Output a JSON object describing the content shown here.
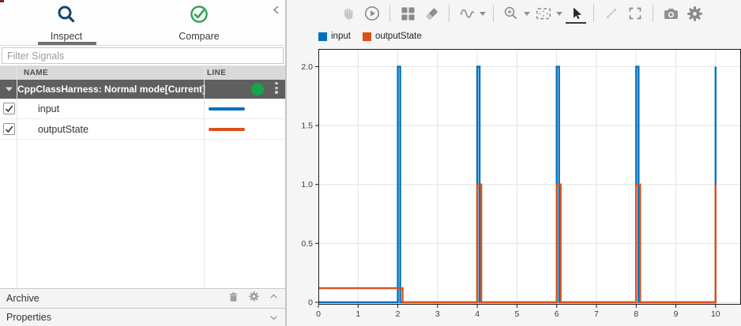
{
  "left_panel": {
    "collapse_icon": "chevron-left",
    "tabs": [
      {
        "label": "Inspect",
        "icon": "magnifier",
        "selected": true
      },
      {
        "label": "Compare",
        "icon": "check-circle",
        "selected": false
      }
    ],
    "filter_placeholder": "Filter Signals",
    "table_columns": {
      "name": "NAME",
      "line": "LINE"
    },
    "run": {
      "title": "CppClassHarness: Normal mode[Current]",
      "status": "active",
      "status_color": "#17A54B",
      "expanded": true
    },
    "signals": [
      {
        "name": "input",
        "checked": true,
        "line_color": "#0072BD"
      },
      {
        "name": "outputState",
        "checked": true,
        "line_color": "#D95319"
      }
    ],
    "archive_label": "Archive",
    "properties_label": "Properties"
  },
  "toolbar": {
    "icons": [
      {
        "name": "pan-hand",
        "enabled": false
      },
      {
        "name": "replay",
        "enabled": true
      },
      {
        "name": "subplot-layout",
        "enabled": true
      },
      {
        "name": "eraser",
        "enabled": true
      },
      {
        "name": "signal-wave",
        "enabled": true,
        "has_dropdown": true
      },
      {
        "name": "zoom-in",
        "enabled": true,
        "has_dropdown": true
      },
      {
        "name": "fit-to-view",
        "enabled": true,
        "has_dropdown": true
      },
      {
        "name": "pointer",
        "enabled": true,
        "selected": true
      },
      {
        "name": "resize-diagonal",
        "enabled": false
      },
      {
        "name": "maximize",
        "enabled": true
      },
      {
        "name": "snapshot-camera",
        "enabled": true
      },
      {
        "name": "settings-gear",
        "enabled": true
      }
    ]
  },
  "legend": {
    "items": [
      {
        "label": "input",
        "color": "#0072BD"
      },
      {
        "label": "outputState",
        "color": "#D95319"
      }
    ]
  },
  "chart_data": {
    "type": "line",
    "subtype": "step",
    "title": "",
    "xlabel": "",
    "ylabel": "",
    "xlim": [
      0,
      10.64
    ],
    "ylim": [
      -0.02,
      2.15
    ],
    "xticks": [
      0,
      1,
      2,
      3,
      4,
      5,
      6,
      7,
      8,
      9,
      10
    ],
    "yticks": [
      0,
      0.5,
      1,
      1.5,
      2
    ],
    "ytick_labels": [
      "0",
      "0.5",
      "1.0",
      "1.5",
      "2.0"
    ],
    "grid": true,
    "legend_position": "top-left",
    "series": [
      {
        "name": "input",
        "color": "#0072BD",
        "description": "zero baseline with narrow impulses to 2.0 at t = 2, 4, 6, 8, 10",
        "points": [
          [
            0,
            0
          ],
          [
            2,
            0
          ],
          [
            2,
            2
          ],
          [
            2.06,
            2
          ],
          [
            2.06,
            0
          ],
          [
            4,
            0
          ],
          [
            4,
            2
          ],
          [
            4.06,
            2
          ],
          [
            4.06,
            0
          ],
          [
            6,
            0
          ],
          [
            6,
            2
          ],
          [
            6.06,
            2
          ],
          [
            6.06,
            0
          ],
          [
            8,
            0
          ],
          [
            8,
            2
          ],
          [
            8.06,
            2
          ],
          [
            8.06,
            0
          ],
          [
            10,
            0
          ],
          [
            10,
            2
          ]
        ]
      },
      {
        "name": "outputState",
        "color": "#D95319",
        "description": "level 0.12 from t=0 to t=2.1, then 0 with pulses to 1.0 at t = 4-4.1, 6-6.1, 8-8.1, rising to 1.0 at t=10",
        "points": [
          [
            0,
            0.12
          ],
          [
            2.12,
            0.12
          ],
          [
            2.12,
            0
          ],
          [
            4,
            0
          ],
          [
            4,
            1
          ],
          [
            4.1,
            1
          ],
          [
            4.1,
            0
          ],
          [
            6,
            0
          ],
          [
            6,
            1
          ],
          [
            6.1,
            1
          ],
          [
            6.1,
            0
          ],
          [
            8,
            0
          ],
          [
            8,
            1
          ],
          [
            8.1,
            1
          ],
          [
            8.1,
            0
          ],
          [
            10,
            0
          ],
          [
            10,
            1
          ]
        ]
      }
    ]
  }
}
